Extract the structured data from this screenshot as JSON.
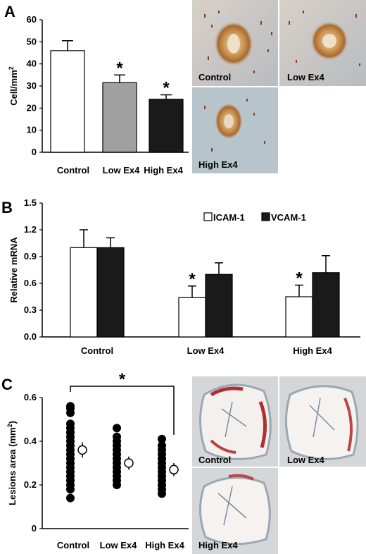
{
  "panels": {
    "a": "A",
    "b": "B",
    "c": "C"
  },
  "photo_labels_a": [
    "Control",
    "Low Ex4",
    "High Ex4"
  ],
  "photo_labels_c": [
    "Control",
    "Low Ex4",
    "High Ex4"
  ],
  "chart_data": [
    {
      "type": "bar",
      "panel": "A",
      "categories": [
        "Control",
        "Low Ex4",
        "High Ex4"
      ],
      "values": [
        46,
        31.5,
        24
      ],
      "errors": [
        4.5,
        3.5,
        2
      ],
      "significance": [
        "",
        "*",
        "*"
      ],
      "colors": [
        "#ffffff",
        "#a0a0a0",
        "#1a1a1a"
      ],
      "ylabel": "Cell/mm²",
      "ylim": [
        0,
        60
      ],
      "yticks": [
        0,
        10,
        20,
        30,
        40,
        50,
        60
      ]
    },
    {
      "type": "bar",
      "panel": "B",
      "categories": [
        "Control",
        "Low Ex4",
        "High Ex4"
      ],
      "series": [
        {
          "name": "ICAM-1",
          "values": [
            1.0,
            0.44,
            0.45
          ],
          "errors": [
            0.2,
            0.13,
            0.13
          ],
          "color": "#ffffff",
          "significance": [
            "",
            "*",
            "*"
          ]
        },
        {
          "name": "VCAM-1",
          "values": [
            1.0,
            0.7,
            0.72
          ],
          "errors": [
            0.11,
            0.13,
            0.19
          ],
          "color": "#1a1a1a",
          "significance": [
            "",
            "",
            ""
          ]
        }
      ],
      "ylabel": "Relative  mRNA",
      "ylim": [
        0,
        1.5
      ],
      "yticks": [
        "0.0",
        "0.3",
        "0.6",
        "0.9",
        "1.2",
        "1.5"
      ],
      "legend_position": "top-right"
    },
    {
      "type": "scatter",
      "panel": "C",
      "categories": [
        "Control",
        "Low Ex4",
        "High Ex4"
      ],
      "points": [
        [
          0.14,
          0.18,
          0.2,
          0.22,
          0.24,
          0.26,
          0.28,
          0.3,
          0.32,
          0.34,
          0.36,
          0.38,
          0.4,
          0.42,
          0.44,
          0.46,
          0.48,
          0.53,
          0.55,
          0.56
        ],
        [
          0.2,
          0.22,
          0.24,
          0.26,
          0.28,
          0.3,
          0.32,
          0.34,
          0.36,
          0.38,
          0.4,
          0.42,
          0.46
        ],
        [
          0.16,
          0.18,
          0.2,
          0.22,
          0.24,
          0.26,
          0.28,
          0.3,
          0.32,
          0.34,
          0.36,
          0.38,
          0.41
        ]
      ],
      "means": [
        0.36,
        0.3,
        0.27
      ],
      "errors": [
        0.035,
        0.03,
        0.03
      ],
      "significance": {
        "from": "Control",
        "to": "High Ex4",
        "label": "*"
      },
      "ylabel": "Lesions area (mm²)",
      "ylim": [
        0,
        0.6
      ],
      "yticks": [
        "0",
        "0.2",
        "0.4",
        "0.6"
      ]
    }
  ]
}
